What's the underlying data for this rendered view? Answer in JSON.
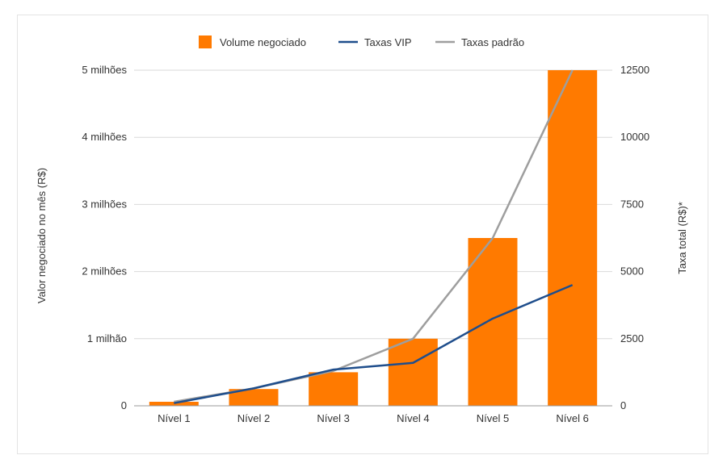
{
  "chart_data": {
    "type": "bar",
    "categories": [
      "Nível 1",
      "Nível 2",
      "Nível 3",
      "Nível 4",
      "Nível 5",
      "Nível 6"
    ],
    "series": [
      {
        "name": "Volume negociado",
        "type": "bar",
        "axis": "left",
        "color": "#ff7a00",
        "values": [
          60000,
          250000,
          500000,
          1000000,
          2500000,
          5000000
        ]
      },
      {
        "name": "Taxas VIP",
        "type": "line",
        "axis": "right",
        "color": "#1f4e8c",
        "values": [
          100,
          650,
          1350,
          1600,
          3250,
          4500
        ]
      },
      {
        "name": "Taxas padrão",
        "type": "line",
        "axis": "right",
        "color": "#9e9e9e",
        "values": [
          150,
          650,
          1300,
          2500,
          6250,
          12500
        ]
      }
    ],
    "ylabel": "Valor negociado no mês (R$)",
    "y2label": "Taxa total (R$)*",
    "ylim": [
      0,
      5000000
    ],
    "y2lim": [
      0,
      12500
    ],
    "yticks": [
      {
        "value": 0,
        "label": "0"
      },
      {
        "value": 1000000,
        "label": "1 milhão"
      },
      {
        "value": 2000000,
        "label": "2 milhões"
      },
      {
        "value": 3000000,
        "label": "3 milhões"
      },
      {
        "value": 4000000,
        "label": "4 milhões"
      },
      {
        "value": 5000000,
        "label": "5 milhões"
      }
    ],
    "y2ticks": [
      {
        "value": 0,
        "label": "0"
      },
      {
        "value": 2500,
        "label": "2500"
      },
      {
        "value": 5000,
        "label": "5000"
      },
      {
        "value": 7500,
        "label": "7500"
      },
      {
        "value": 10000,
        "label": "10000"
      },
      {
        "value": 12500,
        "label": "12500"
      }
    ],
    "grid": true,
    "legend_position": "top-center"
  }
}
